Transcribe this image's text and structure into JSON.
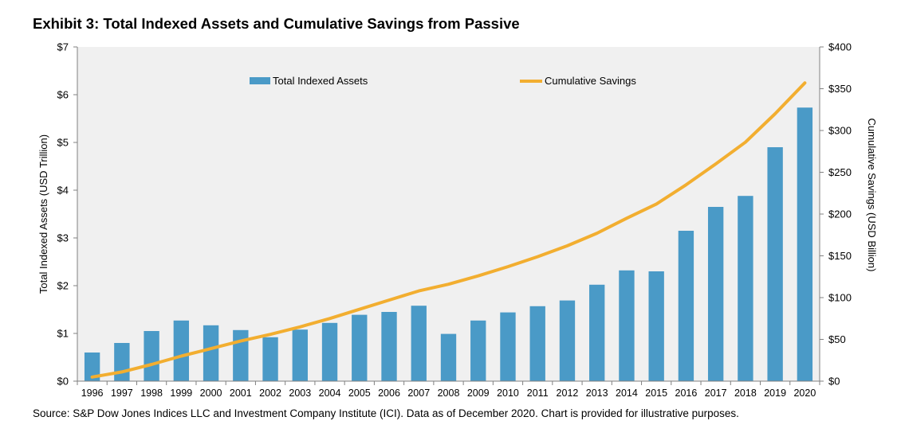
{
  "title": "Exhibit 3: Total Indexed Assets and Cumulative Savings from Passive",
  "source": "Source: S&P Dow Jones Indices LLC and Investment Company Institute (ICI). Data as of December 2020. Chart is provided for illustrative purposes.",
  "colors": {
    "bar": "#4A9AC7",
    "line": "#F2AE30",
    "plot_bg": "#F0F0F0",
    "axis": "#808080"
  },
  "chart_data": {
    "type": "bar",
    "categories": [
      "1996",
      "1997",
      "1998",
      "1999",
      "2000",
      "2001",
      "2002",
      "2003",
      "2004",
      "2005",
      "2006",
      "2007",
      "2008",
      "2009",
      "2010",
      "2011",
      "2012",
      "2013",
      "2014",
      "2015",
      "2016",
      "2017",
      "2018",
      "2019",
      "2020"
    ],
    "series": [
      {
        "name": "Total Indexed Assets",
        "type": "bar",
        "axis": "left",
        "values": [
          0.6,
          0.8,
          1.05,
          1.27,
          1.17,
          1.07,
          0.92,
          1.08,
          1.22,
          1.39,
          1.45,
          1.58,
          0.99,
          1.27,
          1.44,
          1.57,
          1.69,
          2.02,
          2.32,
          2.3,
          3.15,
          3.65,
          3.88,
          4.9,
          5.73
        ]
      },
      {
        "name": "Cumulative Savings",
        "type": "line",
        "axis": "right",
        "values": [
          5,
          11,
          20,
          30,
          39,
          48,
          56,
          65,
          75,
          86,
          97,
          108,
          116,
          126,
          137,
          149,
          162,
          177,
          195,
          212,
          235,
          260,
          286,
          320,
          357
        ]
      }
    ],
    "ylabel": "Total Indexed Assets (USD Trillion)",
    "y2label": "Cumulative Savings (USD Billion)",
    "ylim": [
      0,
      7
    ],
    "y2lim": [
      0,
      400
    ],
    "yticks": [
      "$0",
      "$1",
      "$2",
      "$3",
      "$4",
      "$5",
      "$6",
      "$7"
    ],
    "y2ticks": [
      "$0",
      "$50",
      "$100",
      "$150",
      "$200",
      "$250",
      "$300",
      "$350",
      "$400"
    ],
    "legend": "top",
    "grid": false
  }
}
